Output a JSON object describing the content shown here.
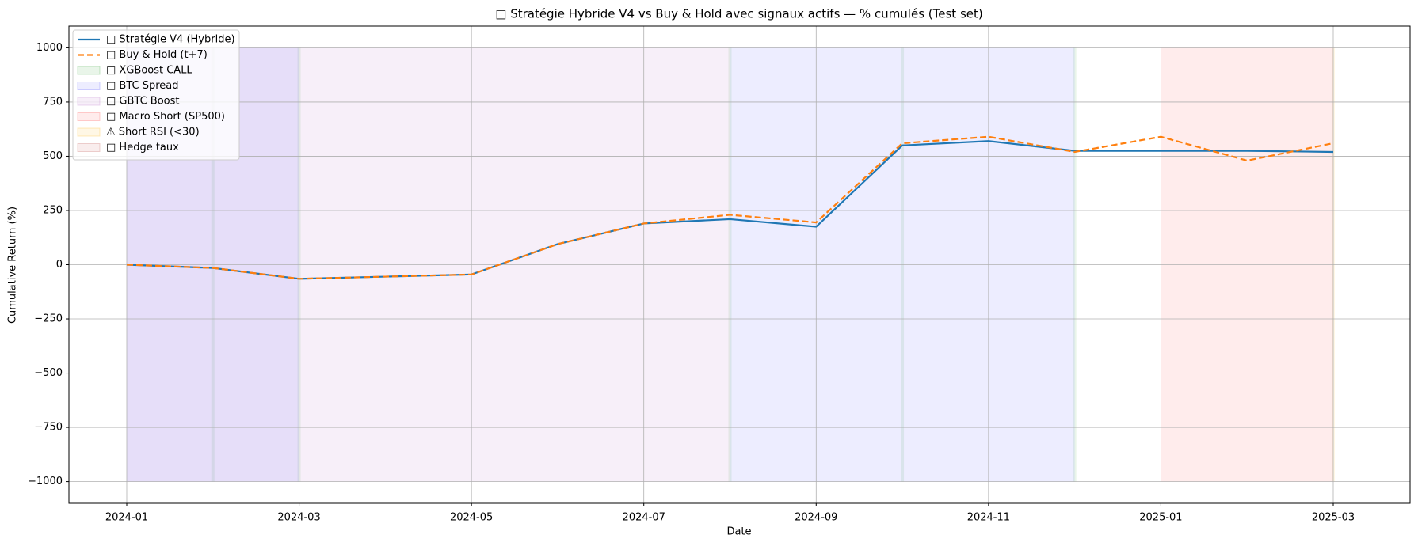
{
  "chart_data": {
    "type": "line",
    "title": "□ Stratégie Hybride V4 vs Buy & Hold avec signaux actifs — % cumulés (Test set)",
    "xlabel": "Date",
    "ylabel": "Cumulative Return (%)",
    "x": [
      "2024-01",
      "2024-02",
      "2024-03",
      "2024-04",
      "2024-05",
      "2024-06",
      "2024-07",
      "2024-08",
      "2024-09",
      "2024-10",
      "2024-11",
      "2024-12",
      "2025-01",
      "2025-02",
      "2025-03"
    ],
    "series": [
      {
        "name": "□ Stratégie V4 (Hybride)",
        "color": "#1f77b4",
        "style": "solid",
        "values": [
          0,
          -15,
          -65,
          -55,
          -45,
          95,
          190,
          210,
          175,
          550,
          570,
          525,
          525,
          525,
          520
        ]
      },
      {
        "name": "□ Buy & Hold (t+7)",
        "color": "#ff7f0e",
        "style": "dashed",
        "values": [
          0,
          -15,
          -65,
          -55,
          -45,
          95,
          190,
          230,
          195,
          560,
          590,
          520,
          590,
          480,
          560
        ]
      }
    ],
    "span_ylim": [
      -1000,
      1000
    ],
    "spans": [
      {
        "name": "□ XGBoost CALL",
        "color": "#2ca02c",
        "ranges": [
          [
            "2024-02",
            "2024-02"
          ],
          [
            "2024-03",
            "2024-03"
          ],
          [
            "2024-08",
            "2024-08"
          ],
          [
            "2024-10",
            "2024-10"
          ],
          [
            "2024-12",
            "2024-12"
          ]
        ]
      },
      {
        "name": "□ BTC Spread",
        "color": "#4c4cff",
        "ranges": [
          [
            "2024-01",
            "2024-03"
          ],
          [
            "2024-08",
            "2024-12"
          ]
        ]
      },
      {
        "name": "□ GBTC Boost",
        "color": "#b05fc0",
        "ranges": [
          [
            "2024-01",
            "2024-08"
          ]
        ]
      },
      {
        "name": "□ Macro Short (SP500)",
        "color": "#ff4040",
        "ranges": [
          [
            "2025-01",
            "2025-03"
          ]
        ]
      },
      {
        "name": "⚠ Short RSI (<30)",
        "color": "#ffb000",
        "ranges": [
          [
            "2025-03",
            "2025-03"
          ]
        ]
      },
      {
        "name": "□ Hedge taux",
        "color": "#c0504d",
        "ranges": []
      }
    ],
    "xticks": [
      "2024-01",
      "2024-03",
      "2024-05",
      "2024-07",
      "2024-09",
      "2024-11",
      "2025-01",
      "2025-03"
    ],
    "ylim": [
      -1100,
      1100
    ],
    "yticks": [
      {
        "value": -1000,
        "label": "−1000"
      },
      {
        "value": -750,
        "label": "−750"
      },
      {
        "value": -500,
        "label": "−500"
      },
      {
        "value": -250,
        "label": "−250"
      },
      0,
      250,
      500,
      750,
      1000
    ],
    "grid": true,
    "legend": "upper left"
  }
}
